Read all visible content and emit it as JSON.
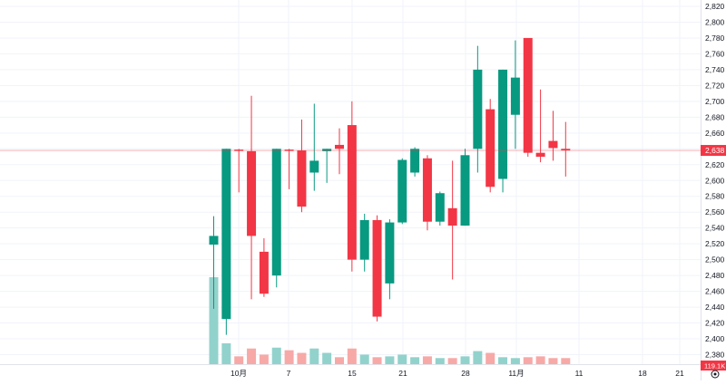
{
  "chart_data": {
    "type": "candlestick",
    "price_axis": {
      "ylim": [
        2368,
        2828
      ],
      "ticks": [
        2380,
        2400,
        2420,
        2440,
        2460,
        2480,
        2500,
        2520,
        2540,
        2560,
        2580,
        2600,
        2620,
        2640,
        2660,
        2680,
        2700,
        2720,
        2740,
        2760,
        2780,
        2800,
        2820
      ],
      "tick_labels": [
        "2,380",
        "2,400",
        "2,420",
        "2,440",
        "2,460",
        "2,480",
        "2,500",
        "2,520",
        "2,540",
        "2,560",
        "2,580",
        "2,600",
        "2,620",
        "2,640",
        "2,660",
        "2,680",
        "2,700",
        "2,720",
        "2,740",
        "2,760",
        "2,780",
        "2,800",
        "2,820"
      ]
    },
    "time_axis": {
      "labels": [
        "10月",
        "7",
        "15",
        "21",
        "28",
        "11月",
        "11",
        "18",
        "21"
      ]
    },
    "candles": [
      {
        "open": 2519,
        "high": 2555,
        "low": 2438,
        "close": 2530
      },
      {
        "open": 2425,
        "high": 2640,
        "low": 2405,
        "close": 2640
      },
      {
        "open": 2639,
        "high": 2640,
        "low": 2585,
        "close": 2638
      },
      {
        "open": 2637,
        "high": 2707,
        "low": 2450,
        "close": 2530
      },
      {
        "open": 2510,
        "high": 2527,
        "low": 2453,
        "close": 2457
      },
      {
        "open": 2480,
        "high": 2640,
        "low": 2465,
        "close": 2640
      },
      {
        "open": 2639,
        "high": 2640,
        "low": 2589,
        "close": 2638
      },
      {
        "open": 2638,
        "high": 2677,
        "low": 2560,
        "close": 2567
      },
      {
        "open": 2610,
        "high": 2697,
        "low": 2587,
        "close": 2625
      },
      {
        "open": 2637,
        "high": 2640,
        "low": 2597,
        "close": 2640
      },
      {
        "open": 2645,
        "high": 2666,
        "low": 2608,
        "close": 2640
      },
      {
        "open": 2670,
        "high": 2700,
        "low": 2485,
        "close": 2500
      },
      {
        "open": 2500,
        "high": 2558,
        "low": 2485,
        "close": 2550
      },
      {
        "open": 2550,
        "high": 2556,
        "low": 2422,
        "close": 2428
      },
      {
        "open": 2470,
        "high": 2551,
        "low": 2450,
        "close": 2547
      },
      {
        "open": 2547,
        "high": 2628,
        "low": 2545,
        "close": 2626
      },
      {
        "open": 2610,
        "high": 2642,
        "low": 2605,
        "close": 2640
      },
      {
        "open": 2628,
        "high": 2632,
        "low": 2537,
        "close": 2548
      },
      {
        "open": 2548,
        "high": 2586,
        "low": 2543,
        "close": 2584
      },
      {
        "open": 2565,
        "high": 2625,
        "low": 2475,
        "close": 2543
      },
      {
        "open": 2543,
        "high": 2640,
        "low": 2543,
        "close": 2632
      },
      {
        "open": 2640,
        "high": 2770,
        "low": 2610,
        "close": 2740
      },
      {
        "open": 2690,
        "high": 2703,
        "low": 2585,
        "close": 2592
      },
      {
        "open": 2602,
        "high": 2740,
        "low": 2585,
        "close": 2740
      },
      {
        "open": 2683,
        "high": 2777,
        "low": 2640,
        "close": 2730
      },
      {
        "open": 2780,
        "high": 2780,
        "low": 2630,
        "close": 2635
      },
      {
        "open": 2635,
        "high": 2715,
        "low": 2623,
        "close": 2630
      },
      {
        "open": 2650,
        "high": 2688,
        "low": 2625,
        "close": 2641
      },
      {
        "open": 2640,
        "high": 2674,
        "low": 2605,
        "close": 2638
      }
    ],
    "volume": [
      100,
      24,
      9,
      18,
      11,
      19,
      16,
      13,
      18,
      13,
      8,
      18,
      11,
      8,
      9,
      11,
      8,
      9,
      7,
      7,
      9,
      15,
      13,
      8,
      7,
      8,
      9,
      7,
      7
    ],
    "last_price_label": "2,638",
    "volume_label": "119.1K",
    "colors": {
      "up": "#089981",
      "down": "#f23645",
      "volume_up": "#92d2cc",
      "volume_down": "#f7a9a7",
      "price_line": "#f23645",
      "grid": "#f0f3fa",
      "axis_text": "#131722"
    },
    "grid": true
  },
  "axis_buttons": {
    "settings_icon": "gear-icon"
  }
}
